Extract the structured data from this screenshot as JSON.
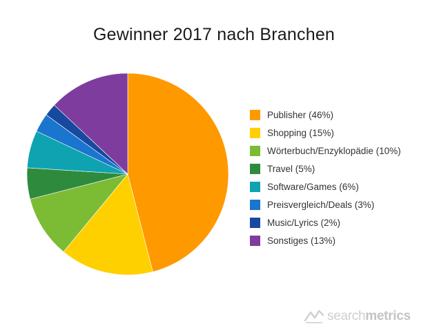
{
  "chart_data": {
    "type": "pie",
    "title": "Gewinner 2017 nach Branchen",
    "start_angle_deg": 0,
    "direction": "clockwise",
    "slices": [
      {
        "label": "Publisher (46%)",
        "value": 46,
        "color": "#FF9900"
      },
      {
        "label": "Shopping (15%)",
        "value": 15,
        "color": "#FFD000"
      },
      {
        "label": "Wörterbuch/Enzyklopädie (10%)",
        "value": 10,
        "color": "#7CBB34"
      },
      {
        "label": "Travel (5%)",
        "value": 5,
        "color": "#2E8B3E"
      },
      {
        "label": "Software/Games (6%)",
        "value": 6,
        "color": "#0FA3B1"
      },
      {
        "label": "Preisvergleich/Deals (3%)",
        "value": 3,
        "color": "#1A75CF"
      },
      {
        "label": "Music/Lyrics (2%)",
        "value": 2,
        "color": "#174A9E"
      },
      {
        "label": "Sonstiges (13%)",
        "value": 13,
        "color": "#7E3D9E"
      }
    ],
    "legend_placement": "right"
  },
  "brand": {
    "name_light": "search",
    "name_bold": "metrics",
    "logo_icon": "searchmetrics-logo-icon"
  }
}
